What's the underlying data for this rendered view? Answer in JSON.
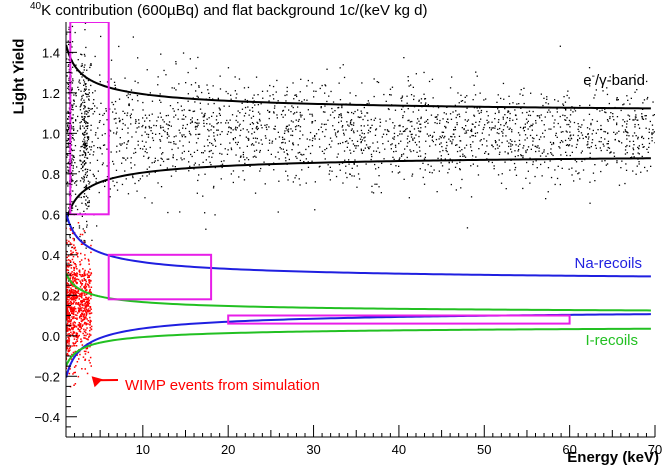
{
  "title": {
    "sup": "40",
    "rest": "K contribution (600µBq) and flat background 1c/(keV kg d)"
  },
  "colors": {
    "egamma": "#000000",
    "na": "#1f1fe0",
    "iodine": "#22c022",
    "roi": "#e81ee8",
    "wimp": "#ff0000"
  },
  "chart_data": {
    "type": "scatter",
    "title": "40K contribution (600µBq) and flat background 1c/(keV kg d)",
    "xlabel": "Energy (keV)",
    "ylabel": "Light Yield",
    "xlim": [
      1,
      70
    ],
    "ylim": [
      -0.5,
      1.55
    ],
    "x_major_ticks": [
      10,
      20,
      30,
      40,
      50,
      60,
      70
    ],
    "y_major_ticks": [
      -0.4,
      -0.2,
      0.0,
      0.2,
      0.4,
      0.6,
      0.8,
      1.0,
      1.2,
      1.4
    ],
    "y_tick_labels": [
      "−0.4",
      "−0.2",
      "0.0",
      "0.2",
      "0.4",
      "0.6",
      "0.8",
      "1.0",
      "1.2",
      "1.4"
    ],
    "series": [
      {
        "name": "e⁻/γ-band",
        "label_main": "e",
        "label_sup": "-",
        "label_rest": "/γ-band",
        "color": "#000000",
        "mean": 1.0,
        "width_param": 0.6,
        "upper": [
          [
            2,
            1.42
          ],
          [
            5,
            1.3
          ],
          [
            10,
            1.2
          ],
          [
            20,
            1.14
          ],
          [
            40,
            1.1
          ],
          [
            70,
            1.08
          ]
        ],
        "lower": [
          [
            2,
            0.58
          ],
          [
            5,
            0.7
          ],
          [
            10,
            0.8
          ],
          [
            20,
            0.86
          ],
          [
            40,
            0.9
          ],
          [
            70,
            0.92
          ]
        ]
      },
      {
        "name": "Na-recoils",
        "color": "#1f1fe0",
        "mean": 0.2,
        "width_param": 0.6,
        "upper": [
          [
            2,
            0.62
          ],
          [
            5,
            0.5
          ],
          [
            10,
            0.4
          ],
          [
            20,
            0.34
          ],
          [
            40,
            0.3
          ],
          [
            70,
            0.28
          ]
        ],
        "lower": [
          [
            2,
            -0.22
          ],
          [
            5,
            -0.1
          ],
          [
            10,
            0.0
          ],
          [
            20,
            0.06
          ],
          [
            40,
            0.1
          ],
          [
            70,
            0.12
          ]
        ]
      },
      {
        "name": "I-recoils",
        "color": "#22c022",
        "mean": 0.08,
        "width_param": 0.35,
        "upper": [
          [
            2,
            0.33
          ],
          [
            5,
            0.24
          ],
          [
            10,
            0.19
          ],
          [
            20,
            0.15
          ],
          [
            40,
            0.13
          ],
          [
            70,
            0.12
          ]
        ],
        "lower": [
          [
            2,
            -0.17
          ],
          [
            5,
            -0.08
          ],
          [
            10,
            -0.03
          ],
          [
            20,
            0.01
          ],
          [
            40,
            0.03
          ],
          [
            70,
            0.04
          ]
        ]
      }
    ],
    "roi_boxes": [
      {
        "x": [
          1.5,
          6
        ],
        "y": [
          0.6,
          1.55
        ]
      },
      {
        "x": [
          6,
          18
        ],
        "y": [
          0.18,
          0.4
        ]
      },
      {
        "x": [
          20,
          60
        ],
        "y": [
          0.06,
          0.1
        ]
      }
    ],
    "egamma_scatter": {
      "count": 2600,
      "x_range": [
        1,
        70
      ],
      "clusters_keV": [
        1.5,
        3.2
      ]
    },
    "wimp_events": {
      "count": 900,
      "x_range": [
        1,
        4
      ],
      "y_center": 0.15,
      "y_spread": 0.12,
      "color": "#ff0000"
    },
    "annotations": [
      {
        "text": "WIMP events from simulation",
        "color": "#ff0000",
        "arrow_to": [
          4,
          -0.2
        ]
      }
    ]
  }
}
